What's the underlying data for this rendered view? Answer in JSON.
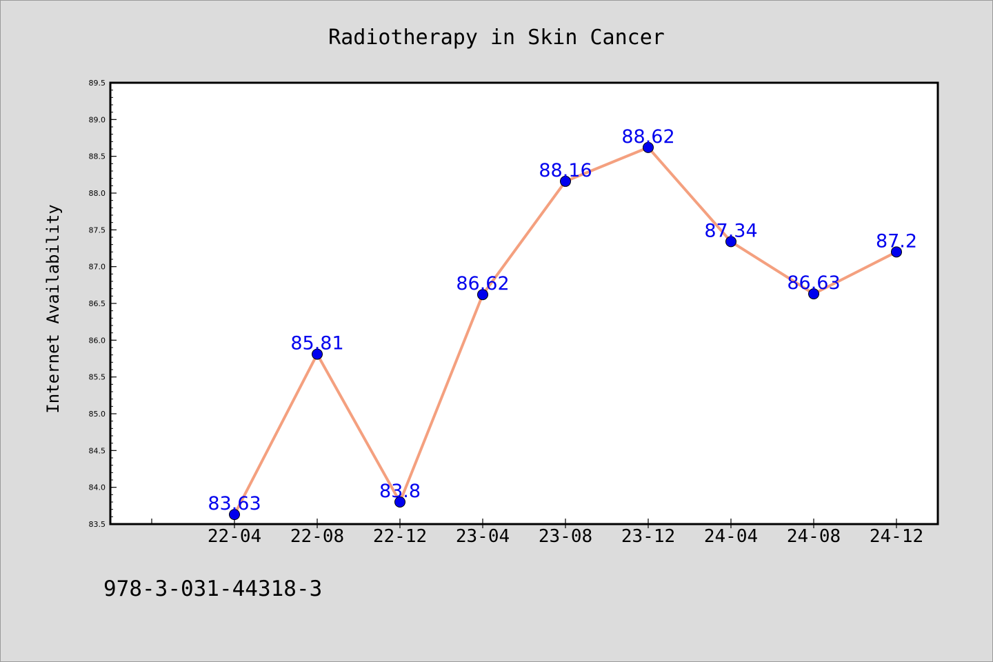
{
  "chart_data": {
    "type": "line",
    "title": "Radiotherapy in Skin Cancer",
    "xlabel": "",
    "ylabel": "Internet Availability",
    "categories": [
      "22-04",
      "22-08",
      "22-12",
      "23-04",
      "23-08",
      "23-12",
      "24-04",
      "24-08",
      "24-12"
    ],
    "values": [
      83.63,
      85.81,
      83.8,
      86.62,
      88.16,
      88.62,
      87.34,
      86.63,
      87.2
    ],
    "data_labels": [
      "83.63",
      "85.81",
      "83.8",
      "86.62",
      "88.16",
      "88.62",
      "87.34",
      "86.63",
      "87.2"
    ],
    "ylim": [
      83.5,
      89.5
    ],
    "yticks": [
      "83.5",
      "84.0",
      "84.5",
      "85.0",
      "85.5",
      "86.0",
      "86.5",
      "87.0",
      "87.5",
      "88.0",
      "88.5",
      "89.0",
      "89.5"
    ],
    "grid": false,
    "legend": "none",
    "colors": {
      "line": "#f4a07f",
      "marker": "#0000ee",
      "data_label": "#0000ee",
      "plot_background": "#ffffff",
      "figure_background": "#dcdcdc"
    }
  },
  "footer": {
    "text": "978-3-031-44318-3"
  }
}
